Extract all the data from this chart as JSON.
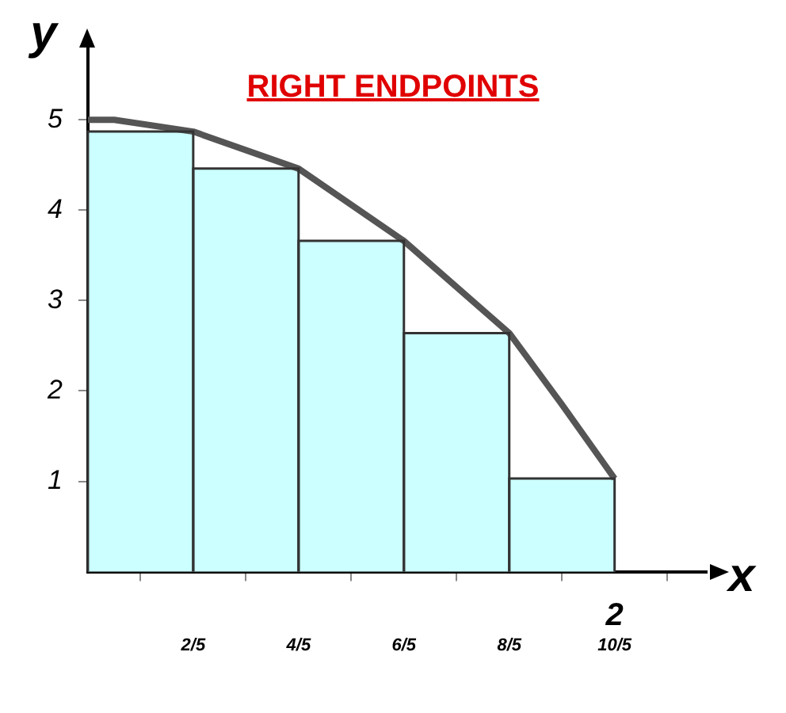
{
  "chart_data": {
    "type": "histogram",
    "title": "RIGHT ENDPOINTS",
    "xlabel": "x",
    "ylabel": "y",
    "bins": [
      0,
      0.4,
      0.8,
      1.2,
      1.6,
      2
    ],
    "values": [
      4.87,
      4.46,
      3.66,
      2.64,
      1.03
    ],
    "color": "#ccffff",
    "series": [
      {
        "type": "line",
        "x": [
          0,
          0.1,
          0.4,
          0.8,
          1.2,
          1.6,
          1.8,
          2
        ],
        "values": [
          5,
          5,
          4.87,
          4.46,
          3.66,
          2.64,
          1.85,
          1.03
        ],
        "color": "#555555"
      }
    ],
    "xlim": [
      0,
      2.35
    ],
    "ylim": [
      0,
      5.8
    ],
    "xticks": [
      {
        "value": 0.4,
        "label": "2/5"
      },
      {
        "value": 0.8,
        "label": "4/5"
      },
      {
        "value": 1.2,
        "label": "6/5"
      },
      {
        "value": 1.6,
        "label": "8/5"
      },
      {
        "value": 2,
        "label": "10/5"
      }
    ],
    "yticks": [
      1,
      2,
      3,
      4,
      5
    ],
    "annotations": [
      {
        "text": "2",
        "x": 2,
        "y": 0
      }
    ],
    "grid": false,
    "legend": false
  }
}
